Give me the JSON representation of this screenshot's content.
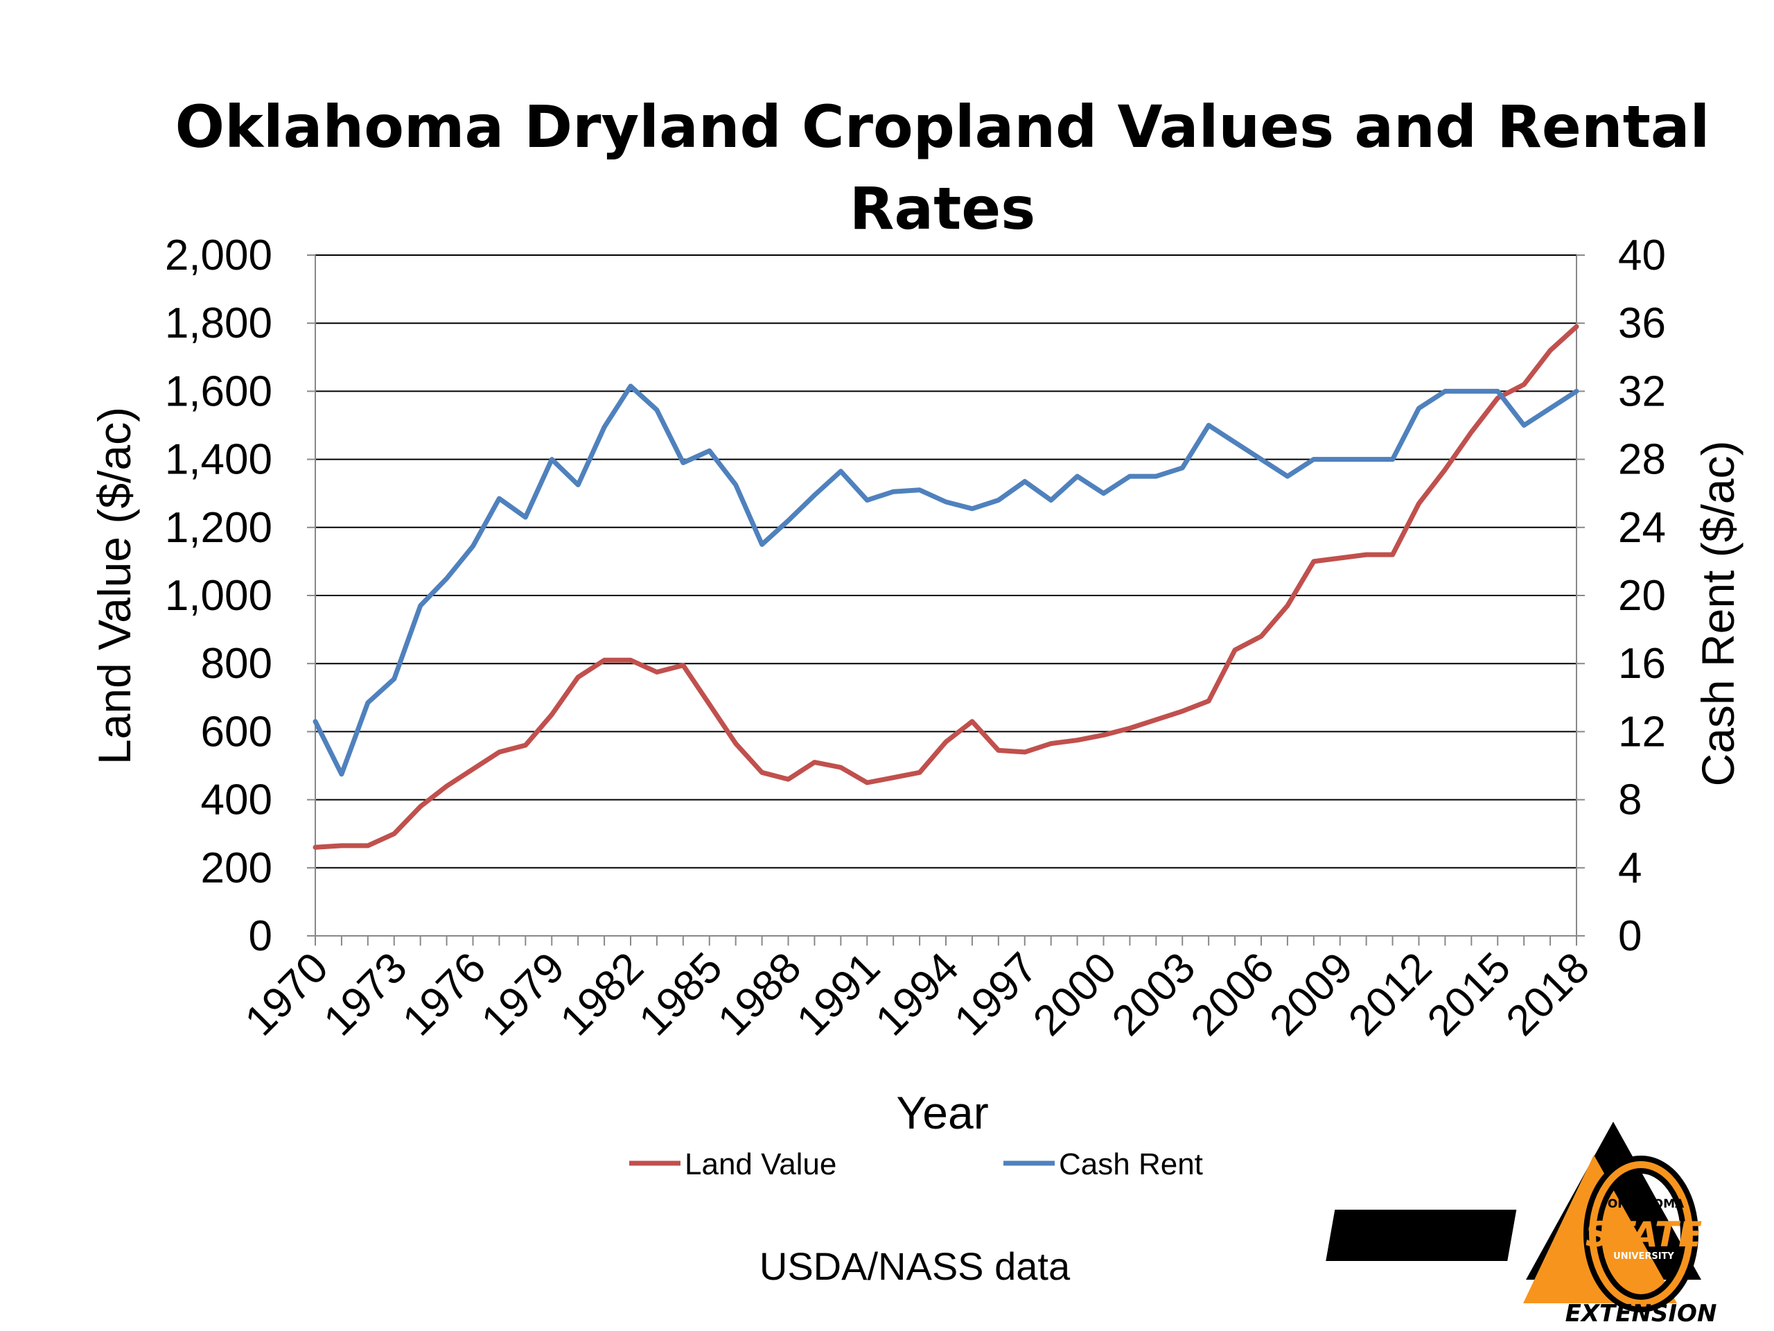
{
  "chart_data": {
    "type": "line",
    "title_line1": "Oklahoma Dryland Cropland Values and Rental",
    "title_line2": "Rates",
    "xlabel": "Year",
    "ylabel_left": "Land Value ($/ac)",
    "ylabel_right": "Cash Rent ($/ac)",
    "ylim_left": [
      0,
      2000
    ],
    "ylim_right": [
      0,
      40
    ],
    "yticks_left": [
      "0",
      "200",
      "400",
      "600",
      "800",
      "1,000",
      "1,200",
      "1,400",
      "1,600",
      "1,800",
      "2,000"
    ],
    "yticks_right": [
      "0",
      "4",
      "8",
      "12",
      "16",
      "20",
      "24",
      "28",
      "32",
      "36",
      "40"
    ],
    "xticks": [
      "1970",
      "1973",
      "1976",
      "1979",
      "1982",
      "1985",
      "1988",
      "1991",
      "1994",
      "1997",
      "2000",
      "2003",
      "2006",
      "2009",
      "2012",
      "2015",
      "2018"
    ],
    "x": [
      1970,
      1971,
      1972,
      1973,
      1974,
      1975,
      1976,
      1977,
      1978,
      1979,
      1980,
      1981,
      1982,
      1983,
      1984,
      1985,
      1986,
      1987,
      1988,
      1989,
      1990,
      1991,
      1992,
      1993,
      1994,
      1995,
      1996,
      1997,
      1998,
      1999,
      2000,
      2001,
      2002,
      2003,
      2004,
      2005,
      2006,
      2007,
      2008,
      2009,
      2010,
      2011,
      2012,
      2013,
      2014,
      2015,
      2016,
      2017,
      2018
    ],
    "series": [
      {
        "name": "Land Value",
        "axis": "left",
        "color": "#c0504d",
        "values": [
          260,
          265,
          265,
          300,
          380,
          440,
          490,
          540,
          560,
          650,
          760,
          810,
          810,
          775,
          795,
          680,
          565,
          480,
          460,
          510,
          495,
          450,
          465,
          480,
          570,
          630,
          545,
          540,
          565,
          575,
          590,
          610,
          635,
          660,
          690,
          840,
          880,
          970,
          1100,
          1110,
          1120,
          1120,
          1270,
          1370,
          1480,
          1580,
          1620,
          1720,
          1790
        ]
      },
      {
        "name": "Cash Rent",
        "axis": "right",
        "color": "#4f81bd",
        "values": [
          12.6,
          9.5,
          13.7,
          15.1,
          19.4,
          21.0,
          22.9,
          25.7,
          24.6,
          28.0,
          26.5,
          29.9,
          32.3,
          30.9,
          27.8,
          28.5,
          26.5,
          23.0,
          24.4,
          25.9,
          27.3,
          25.6,
          26.1,
          26.2,
          25.5,
          25.1,
          25.6,
          26.7,
          25.6,
          27.0,
          26.0,
          27.0,
          27.0,
          27.5,
          30.0,
          29.0,
          28.0,
          27.0,
          28.0,
          28.0,
          28.0,
          28.0,
          31.0,
          32.0,
          32.0,
          32.0,
          30.0,
          31.0,
          32.0
        ]
      }
    ],
    "legend_position": "bottom",
    "grid": "horizontal"
  },
  "source_note": "USDA/NASS data",
  "logo": {
    "line1": "OKLAHOMA",
    "line2": "STATE",
    "line3": "UNIVERSITY",
    "line4": "EXTENSION",
    "colors": {
      "orange": "#f7941d",
      "black": "#000000"
    }
  }
}
